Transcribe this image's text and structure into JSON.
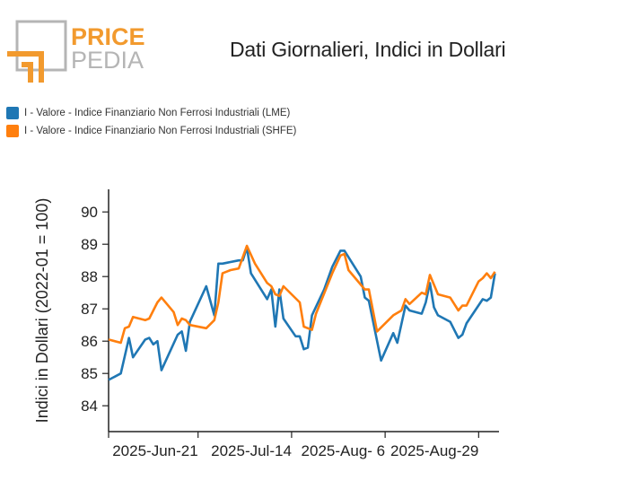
{
  "logo": {
    "line1": "PRICE",
    "line2": "PEDIA"
  },
  "colors": {
    "lme": "#1f77b4",
    "shfe": "#ff7f0e",
    "logo_orange": "#f29a2e",
    "logo_gray": "#b5b5b5"
  },
  "chart_data": {
    "type": "line",
    "title": "Dati Giornalieri, Indici in Dollari",
    "ylabel": "Indici in Dollari (2022-01 = 100)",
    "xlabel": "",
    "ylim": [
      83.2,
      90.7
    ],
    "yticks": [
      84,
      85,
      86,
      87,
      88,
      89,
      90
    ],
    "xrange": [
      "2025-05-30",
      "2025-09-03"
    ],
    "xticks": [
      {
        "date": "2025-06-21",
        "label": "2025-Jun-21"
      },
      {
        "date": "2025-07-14",
        "label": "2025-Jul-14"
      },
      {
        "date": "2025-08-06",
        "label": "2025-Aug- 6"
      },
      {
        "date": "2025-08-29",
        "label": "2025-Aug-29"
      }
    ],
    "legend_placement": "top-left",
    "grid": false,
    "series": [
      {
        "name": "I - Valore - Indice Finanziario Non Ferrosi Industriali (LME)",
        "color": "#1f77b4",
        "points": [
          [
            "2025-05-30",
            84.8
          ],
          [
            "2025-06-02",
            85.0
          ],
          [
            "2025-06-04",
            86.1
          ],
          [
            "2025-06-05",
            85.5
          ],
          [
            "2025-06-08",
            86.05
          ],
          [
            "2025-06-09",
            86.1
          ],
          [
            "2025-06-10",
            85.9
          ],
          [
            "2025-06-11",
            86.0
          ],
          [
            "2025-06-12",
            85.1
          ],
          [
            "2025-06-16",
            86.2
          ],
          [
            "2025-06-17",
            86.3
          ],
          [
            "2025-06-18",
            85.7
          ],
          [
            "2025-06-19",
            86.6
          ],
          [
            "2025-06-23",
            87.7
          ],
          [
            "2025-06-25",
            86.8
          ],
          [
            "2025-06-26",
            88.4
          ],
          [
            "2025-06-27",
            88.4
          ],
          [
            "2025-07-01",
            88.5
          ],
          [
            "2025-07-02",
            88.5
          ],
          [
            "2025-07-03",
            88.9
          ],
          [
            "2025-07-04",
            88.1
          ],
          [
            "2025-07-08",
            87.3
          ],
          [
            "2025-07-09",
            87.6
          ],
          [
            "2025-07-10",
            86.45
          ],
          [
            "2025-07-11",
            87.6
          ],
          [
            "2025-07-12",
            86.7
          ],
          [
            "2025-07-15",
            86.15
          ],
          [
            "2025-07-16",
            86.15
          ],
          [
            "2025-07-17",
            85.75
          ],
          [
            "2025-07-18",
            85.8
          ],
          [
            "2025-07-19",
            86.8
          ],
          [
            "2025-07-22",
            87.6
          ],
          [
            "2025-07-24",
            88.3
          ],
          [
            "2025-07-26",
            88.8
          ],
          [
            "2025-07-27",
            88.8
          ],
          [
            "2025-07-31",
            88.0
          ],
          [
            "2025-08-01",
            87.35
          ],
          [
            "2025-08-02",
            87.25
          ],
          [
            "2025-08-05",
            85.4
          ],
          [
            "2025-08-08",
            86.25
          ],
          [
            "2025-08-09",
            85.95
          ],
          [
            "2025-08-11",
            87.1
          ],
          [
            "2025-08-12",
            86.95
          ],
          [
            "2025-08-15",
            86.85
          ],
          [
            "2025-08-16",
            87.2
          ],
          [
            "2025-08-17",
            87.8
          ],
          [
            "2025-08-18",
            87.05
          ],
          [
            "2025-08-19",
            86.8
          ],
          [
            "2025-08-22",
            86.6
          ],
          [
            "2025-08-24",
            86.1
          ],
          [
            "2025-08-25",
            86.2
          ],
          [
            "2025-08-26",
            86.55
          ],
          [
            "2025-08-30",
            87.3
          ],
          [
            "2025-08-31",
            87.25
          ],
          [
            "2025-09-01",
            87.35
          ],
          [
            "2025-09-02",
            88.1
          ]
        ]
      },
      {
        "name": "I - Valore - Indice Finanziario Non Ferrosi Industriali (SHFE)",
        "color": "#ff7f0e",
        "points": [
          [
            "2025-05-30",
            86.05
          ],
          [
            "2025-06-02",
            85.95
          ],
          [
            "2025-06-03",
            86.4
          ],
          [
            "2025-06-04",
            86.45
          ],
          [
            "2025-06-05",
            86.75
          ],
          [
            "2025-06-08",
            86.65
          ],
          [
            "2025-06-09",
            86.7
          ],
          [
            "2025-06-11",
            87.2
          ],
          [
            "2025-06-12",
            87.35
          ],
          [
            "2025-06-15",
            86.9
          ],
          [
            "2025-06-16",
            86.5
          ],
          [
            "2025-06-17",
            86.7
          ],
          [
            "2025-06-18",
            86.65
          ],
          [
            "2025-06-19",
            86.5
          ],
          [
            "2025-06-23",
            86.4
          ],
          [
            "2025-06-25",
            86.65
          ],
          [
            "2025-06-26",
            87.2
          ],
          [
            "2025-06-27",
            88.1
          ],
          [
            "2025-06-29",
            88.2
          ],
          [
            "2025-07-01",
            88.25
          ],
          [
            "2025-07-03",
            88.95
          ],
          [
            "2025-07-05",
            88.4
          ],
          [
            "2025-07-08",
            87.8
          ],
          [
            "2025-07-09",
            87.7
          ],
          [
            "2025-07-10",
            87.45
          ],
          [
            "2025-07-11",
            87.4
          ],
          [
            "2025-07-12",
            87.7
          ],
          [
            "2025-07-16",
            87.2
          ],
          [
            "2025-07-17",
            86.45
          ],
          [
            "2025-07-18",
            86.4
          ],
          [
            "2025-07-19",
            86.35
          ],
          [
            "2025-07-20",
            86.85
          ],
          [
            "2025-07-24",
            88.1
          ],
          [
            "2025-07-26",
            88.65
          ],
          [
            "2025-07-27",
            88.7
          ],
          [
            "2025-07-28",
            88.2
          ],
          [
            "2025-08-01",
            87.6
          ],
          [
            "2025-08-02",
            87.6
          ],
          [
            "2025-08-04",
            86.3
          ],
          [
            "2025-08-08",
            86.8
          ],
          [
            "2025-08-10",
            86.95
          ],
          [
            "2025-08-11",
            87.3
          ],
          [
            "2025-08-12",
            87.15
          ],
          [
            "2025-08-15",
            87.5
          ],
          [
            "2025-08-16",
            87.45
          ],
          [
            "2025-08-17",
            88.05
          ],
          [
            "2025-08-19",
            87.45
          ],
          [
            "2025-08-22",
            87.35
          ],
          [
            "2025-08-24",
            86.95
          ],
          [
            "2025-08-25",
            87.1
          ],
          [
            "2025-08-26",
            87.1
          ],
          [
            "2025-08-29",
            87.85
          ],
          [
            "2025-08-30",
            87.95
          ],
          [
            "2025-08-31",
            88.1
          ],
          [
            "2025-09-01",
            87.95
          ],
          [
            "2025-09-02",
            88.15
          ]
        ]
      }
    ]
  }
}
